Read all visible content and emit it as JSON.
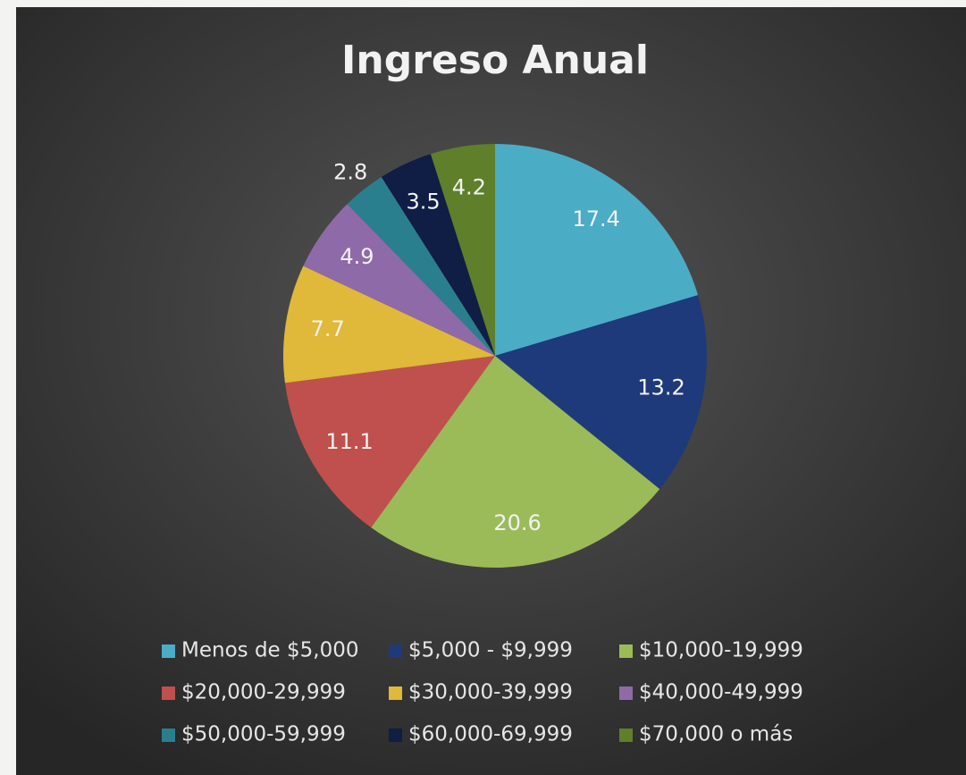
{
  "chart_data": {
    "type": "pie",
    "title": "Ingreso Anual",
    "categories": [
      "Menos de $5,000",
      "$5,000 - $9,999",
      "$10,000-19,999",
      "$20,000-29,999",
      "$30,000-39,999",
      "$40,000-49,999",
      "$50,000-59,999",
      "$60,000-69,999",
      "$70,000 o más"
    ],
    "values": [
      17.4,
      13.2,
      20.6,
      11.1,
      7.7,
      4.9,
      2.8,
      3.5,
      4.2
    ],
    "colors": [
      "#4bacc6",
      "#1f3a7a",
      "#9bbb59",
      "#c0504d",
      "#e0b83a",
      "#8f6aa8",
      "#2a7f8f",
      "#101d45",
      "#5f7f2a"
    ],
    "legend": "bottom"
  }
}
